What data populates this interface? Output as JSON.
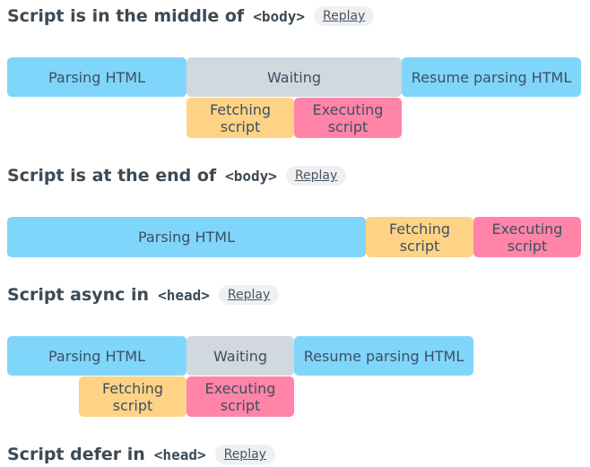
{
  "replay_label": "Replay",
  "colors": {
    "parsing": "#80d5fb",
    "waiting": "#d1d8de",
    "fetching": "#ffd385",
    "executing": "#ff84a8"
  },
  "sections": [
    {
      "title": "Script is in the middle of",
      "tag": "<body>",
      "blocks": {
        "parsing": "Parsing HTML",
        "waiting": "Waiting",
        "resume": "Resume parsing HTML",
        "fetching": "Fetching\nscript",
        "executing": "Executing\nscript"
      }
    },
    {
      "title": "Script is at the end of",
      "tag": "<body>",
      "blocks": {
        "parsing": "Parsing HTML",
        "fetching": "Fetching\nscript",
        "executing": "Executing\nscript"
      }
    },
    {
      "title": "Script async in",
      "tag": "<head>",
      "blocks": {
        "parsing": "Parsing HTML",
        "waiting": "Waiting",
        "resume": "Resume parsing HTML",
        "fetching": "Fetching\nscript",
        "executing": "Executing\nscript"
      }
    },
    {
      "title": "Script defer in",
      "tag": "<head>"
    }
  ]
}
